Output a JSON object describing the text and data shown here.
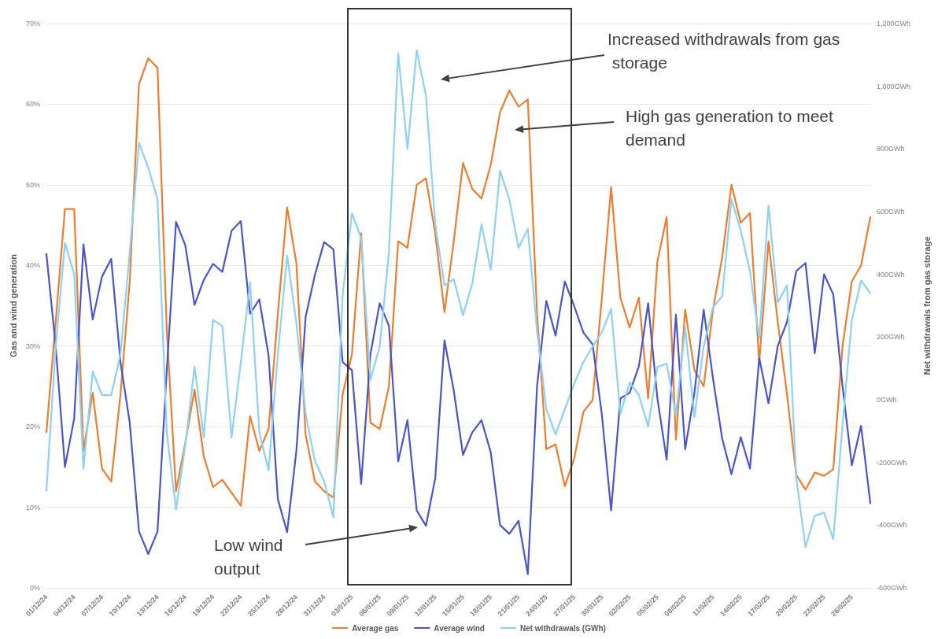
{
  "chart_data": {
    "type": "line",
    "categories": [
      "01/12/24",
      null,
      null,
      "04/12/24",
      null,
      null,
      "07/12/24",
      null,
      null,
      "10/12/24",
      null,
      null,
      "13/12/24",
      null,
      null,
      "16/12/24",
      null,
      null,
      "19/12/24",
      null,
      null,
      "22/12/24",
      null,
      null,
      "25/12/24",
      null,
      null,
      "28/12/24",
      null,
      null,
      "31/12/24",
      null,
      null,
      "03/01/25",
      null,
      null,
      "06/01/25",
      null,
      null,
      "09/01/25",
      null,
      null,
      "12/01/25",
      null,
      null,
      "15/01/25",
      null,
      null,
      "18/01/25",
      null,
      null,
      "21/01/25",
      null,
      null,
      "24/01/25",
      null,
      null,
      "27/01/25",
      null,
      null,
      "30/01/25",
      null,
      null,
      "02/02/25",
      null,
      null,
      "05/02/25",
      null,
      null,
      "08/02/25",
      null,
      null,
      "11/02/25",
      null,
      null,
      "14/02/25",
      null,
      null,
      "17/02/25",
      null,
      null,
      "20/02/25",
      null,
      null,
      "23/02/25",
      null,
      null,
      "26/02/25",
      null,
      null
    ],
    "series": [
      {
        "name": "Average gas",
        "color": "#ed7d31",
        "values": [
          19.3,
          33,
          47,
          47,
          17,
          24.2,
          14.8,
          13.2,
          24,
          38,
          62.5,
          65.7,
          64.5,
          32,
          12,
          18,
          24.6,
          16.3,
          12.5,
          13.4,
          11.8,
          10.2,
          21.3,
          17,
          19.7,
          34,
          47.2,
          40.3,
          19,
          13.2,
          12,
          11.2,
          24,
          29,
          44,
          20.5,
          19.7,
          25,
          43,
          42.2,
          50,
          50.8,
          44,
          34.2,
          43,
          52.7,
          49.5,
          48.3,
          52.5,
          59,
          61.7,
          59.7,
          60.6,
          34,
          17.2,
          17.8,
          12.6,
          16,
          21.8,
          23.3,
          36,
          49.7,
          36,
          32.3,
          36,
          23.5,
          40.5,
          46,
          18.4,
          34.5,
          27,
          25,
          34.5,
          41,
          50,
          45.3,
          46.5,
          28,
          43,
          33,
          24,
          14,
          12.2,
          14.3,
          13.9,
          14.7,
          30,
          38,
          40,
          46
        ]
      },
      {
        "name": "Average wind",
        "color": "#4a55c9",
        "values": [
          41.4,
          30,
          15,
          21,
          42.6,
          33.3,
          38.6,
          40.8,
          28,
          20.5,
          7,
          4.2,
          7,
          27,
          45.4,
          42.5,
          35.1,
          38.2,
          40.2,
          39.2,
          44.3,
          45.5,
          34,
          35.8,
          28.8,
          11,
          6.9,
          17,
          33.6,
          38.8,
          42.9,
          42,
          28,
          27,
          12.9,
          29,
          35.3,
          32.5,
          15.7,
          20.8,
          9.6,
          7.7,
          13.6,
          30.7,
          24.5,
          16.5,
          19.3,
          20.8,
          16.8,
          7.8,
          6.7,
          8.3,
          1.7,
          25,
          35.6,
          31.3,
          38,
          35,
          31.7,
          30.2,
          21.5,
          9.6,
          23.5,
          24.2,
          27.5,
          35.3,
          23.5,
          15.9,
          33.9,
          17.2,
          24.2,
          34.5,
          26,
          18.5,
          14.1,
          18.7,
          14.8,
          28.5,
          22.9,
          30,
          33,
          39.3,
          40.3,
          29.1,
          38.9,
          36.4,
          25,
          15.2,
          20.1,
          10.5
        ]
      },
      {
        "name": "Net withdrawals (GWh)",
        "color": "#8fd0f5",
        "axis": "y2",
        "values": [
          -290,
          170,
          500,
          400,
          -220,
          90,
          15,
          15,
          145,
          470,
          820,
          740,
          640,
          -105,
          -350,
          -145,
          105,
          -120,
          255,
          235,
          -120,
          120,
          375,
          -105,
          -225,
          145,
          460,
          245,
          -45,
          -195,
          -260,
          -375,
          335,
          595,
          515,
          65,
          170,
          470,
          1105,
          800,
          1115,
          970,
          560,
          365,
          385,
          270,
          370,
          560,
          415,
          730,
          640,
          485,
          545,
          220,
          -30,
          -110,
          -30,
          50,
          120,
          170,
          215,
          290,
          -45,
          55,
          15,
          -85,
          105,
          115,
          -50,
          230,
          -55,
          170,
          295,
          330,
          640,
          540,
          410,
          195,
          620,
          310,
          365,
          -250,
          -470,
          -370,
          -360,
          -445,
          -80,
          255,
          380,
          340
        ]
      }
    ],
    "ylabel": "Gas and wind generation",
    "y2label": "Net withdrawals from gas storage",
    "ylim": [
      0,
      70
    ],
    "yticks": [
      {
        "value": 0,
        "label": "0%"
      },
      {
        "value": 10,
        "label": "10%"
      },
      {
        "value": 20,
        "label": "20%"
      },
      {
        "value": 30,
        "label": "30%"
      },
      {
        "value": 40,
        "label": "40%"
      },
      {
        "value": 50,
        "label": "50%"
      },
      {
        "value": 60,
        "label": "60%"
      },
      {
        "value": 70,
        "label": "70%"
      }
    ],
    "y2lim": [
      -600,
      1200
    ],
    "y2ticks": [
      {
        "value": -600,
        "label": "-600GWh"
      },
      {
        "value": -400,
        "label": "-400GWh"
      },
      {
        "value": -200,
        "label": "-200GWh"
      },
      {
        "value": 0,
        "label": "0GWh"
      },
      {
        "value": 200,
        "label": "200GWh"
      },
      {
        "value": 400,
        "label": "400GWh"
      },
      {
        "value": 600,
        "label": "600GWh"
      },
      {
        "value": 800,
        "label": "800GWh"
      },
      {
        "value": 1000,
        "label": "1,000GWh"
      },
      {
        "value": 1200,
        "label": "1,200GWh"
      }
    ],
    "annotations": [
      "Increased withdrawals from gas storage",
      "High gas generation to meet demand",
      "Low wind output"
    ],
    "grid": "y",
    "legend": "bottom",
    "marker": "none",
    "line_style": "solid"
  }
}
